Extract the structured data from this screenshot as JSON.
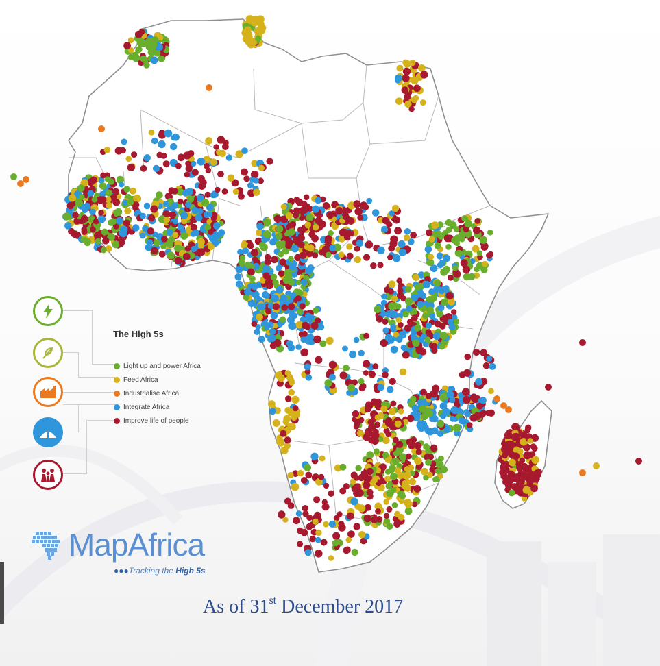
{
  "legend": {
    "title": "The High 5s",
    "items": [
      {
        "label": "Light up and power Africa",
        "color": "#6aae2e",
        "icon": "lightning-bolt-icon"
      },
      {
        "label": "Feed Africa",
        "color": "#d5b21c",
        "icon": "wheat-icon"
      },
      {
        "label": "Industrialise Africa",
        "color": "#ea7a22",
        "icon": "factory-icon"
      },
      {
        "label": "Integrate Africa",
        "color": "#2f96dc",
        "icon": "bridge-icon"
      },
      {
        "label": "Improve life of people",
        "color": "#a6192e",
        "icon": "people-icon"
      }
    ]
  },
  "brand": {
    "name_part1": "Map",
    "name_part2": "Africa",
    "tagline_prefix": "Tracking the ",
    "tagline_bold": "High 5s"
  },
  "date": {
    "prefix": "As of 31",
    "sup": "st",
    "suffix": " December 2017"
  },
  "colors": {
    "light": "#6aae2e",
    "feed": "#d5b21c",
    "industrialise": "#ea7a22",
    "integrate": "#2f96dc",
    "improve": "#a6192e"
  }
}
